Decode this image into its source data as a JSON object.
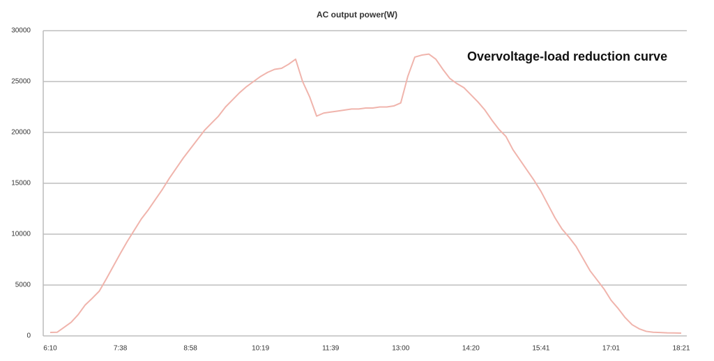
{
  "chart_data": {
    "type": "line",
    "title": "AC output power(W)",
    "annotation": "Overvoltage-load reduction curve",
    "categories": [
      "6:10",
      null,
      null,
      null,
      null,
      null,
      null,
      null,
      null,
      null,
      "7:38",
      null,
      null,
      null,
      null,
      null,
      null,
      null,
      null,
      null,
      "8:58",
      null,
      null,
      null,
      null,
      null,
      null,
      null,
      null,
      null,
      "10:19",
      null,
      null,
      null,
      null,
      null,
      null,
      null,
      null,
      null,
      "11:39",
      null,
      null,
      null,
      null,
      null,
      null,
      null,
      null,
      null,
      "13:00",
      null,
      null,
      null,
      null,
      null,
      null,
      null,
      null,
      null,
      "14:20",
      null,
      null,
      null,
      null,
      null,
      null,
      null,
      null,
      null,
      "15:41",
      null,
      null,
      null,
      null,
      null,
      null,
      null,
      null,
      null,
      "17:01",
      null,
      null,
      null,
      null,
      null,
      null,
      null,
      null,
      null,
      "18:21"
    ],
    "values": [
      340,
      360,
      850,
      1350,
      2100,
      3050,
      3700,
      4400,
      5600,
      6850,
      8100,
      9300,
      10400,
      11500,
      12400,
      13400,
      14400,
      15500,
      16500,
      17500,
      18400,
      19300,
      20200,
      20900,
      21600,
      22500,
      23200,
      23900,
      24500,
      25000,
      25500,
      25900,
      26200,
      26300,
      26700,
      27200,
      25000,
      23500,
      21600,
      21900,
      22000,
      22100,
      22200,
      22300,
      22300,
      22400,
      22400,
      22500,
      22500,
      22600,
      22900,
      25500,
      27400,
      27600,
      27700,
      27200,
      26200,
      25300,
      24800,
      24400,
      23700,
      23000,
      22200,
      21200,
      20300,
      19600,
      18300,
      17300,
      16300,
      15300,
      14200,
      12900,
      11600,
      10500,
      9700,
      8800,
      7600,
      6400,
      5500,
      4600,
      3500,
      2700,
      1800,
      1100,
      700,
      450,
      360,
      330,
      300,
      290,
      270
    ],
    "color": "#f0b4ac",
    "ylim": [
      0,
      30000
    ],
    "yticks": [
      0,
      5000,
      10000,
      15000,
      20000,
      25000,
      30000
    ],
    "grid": true
  }
}
